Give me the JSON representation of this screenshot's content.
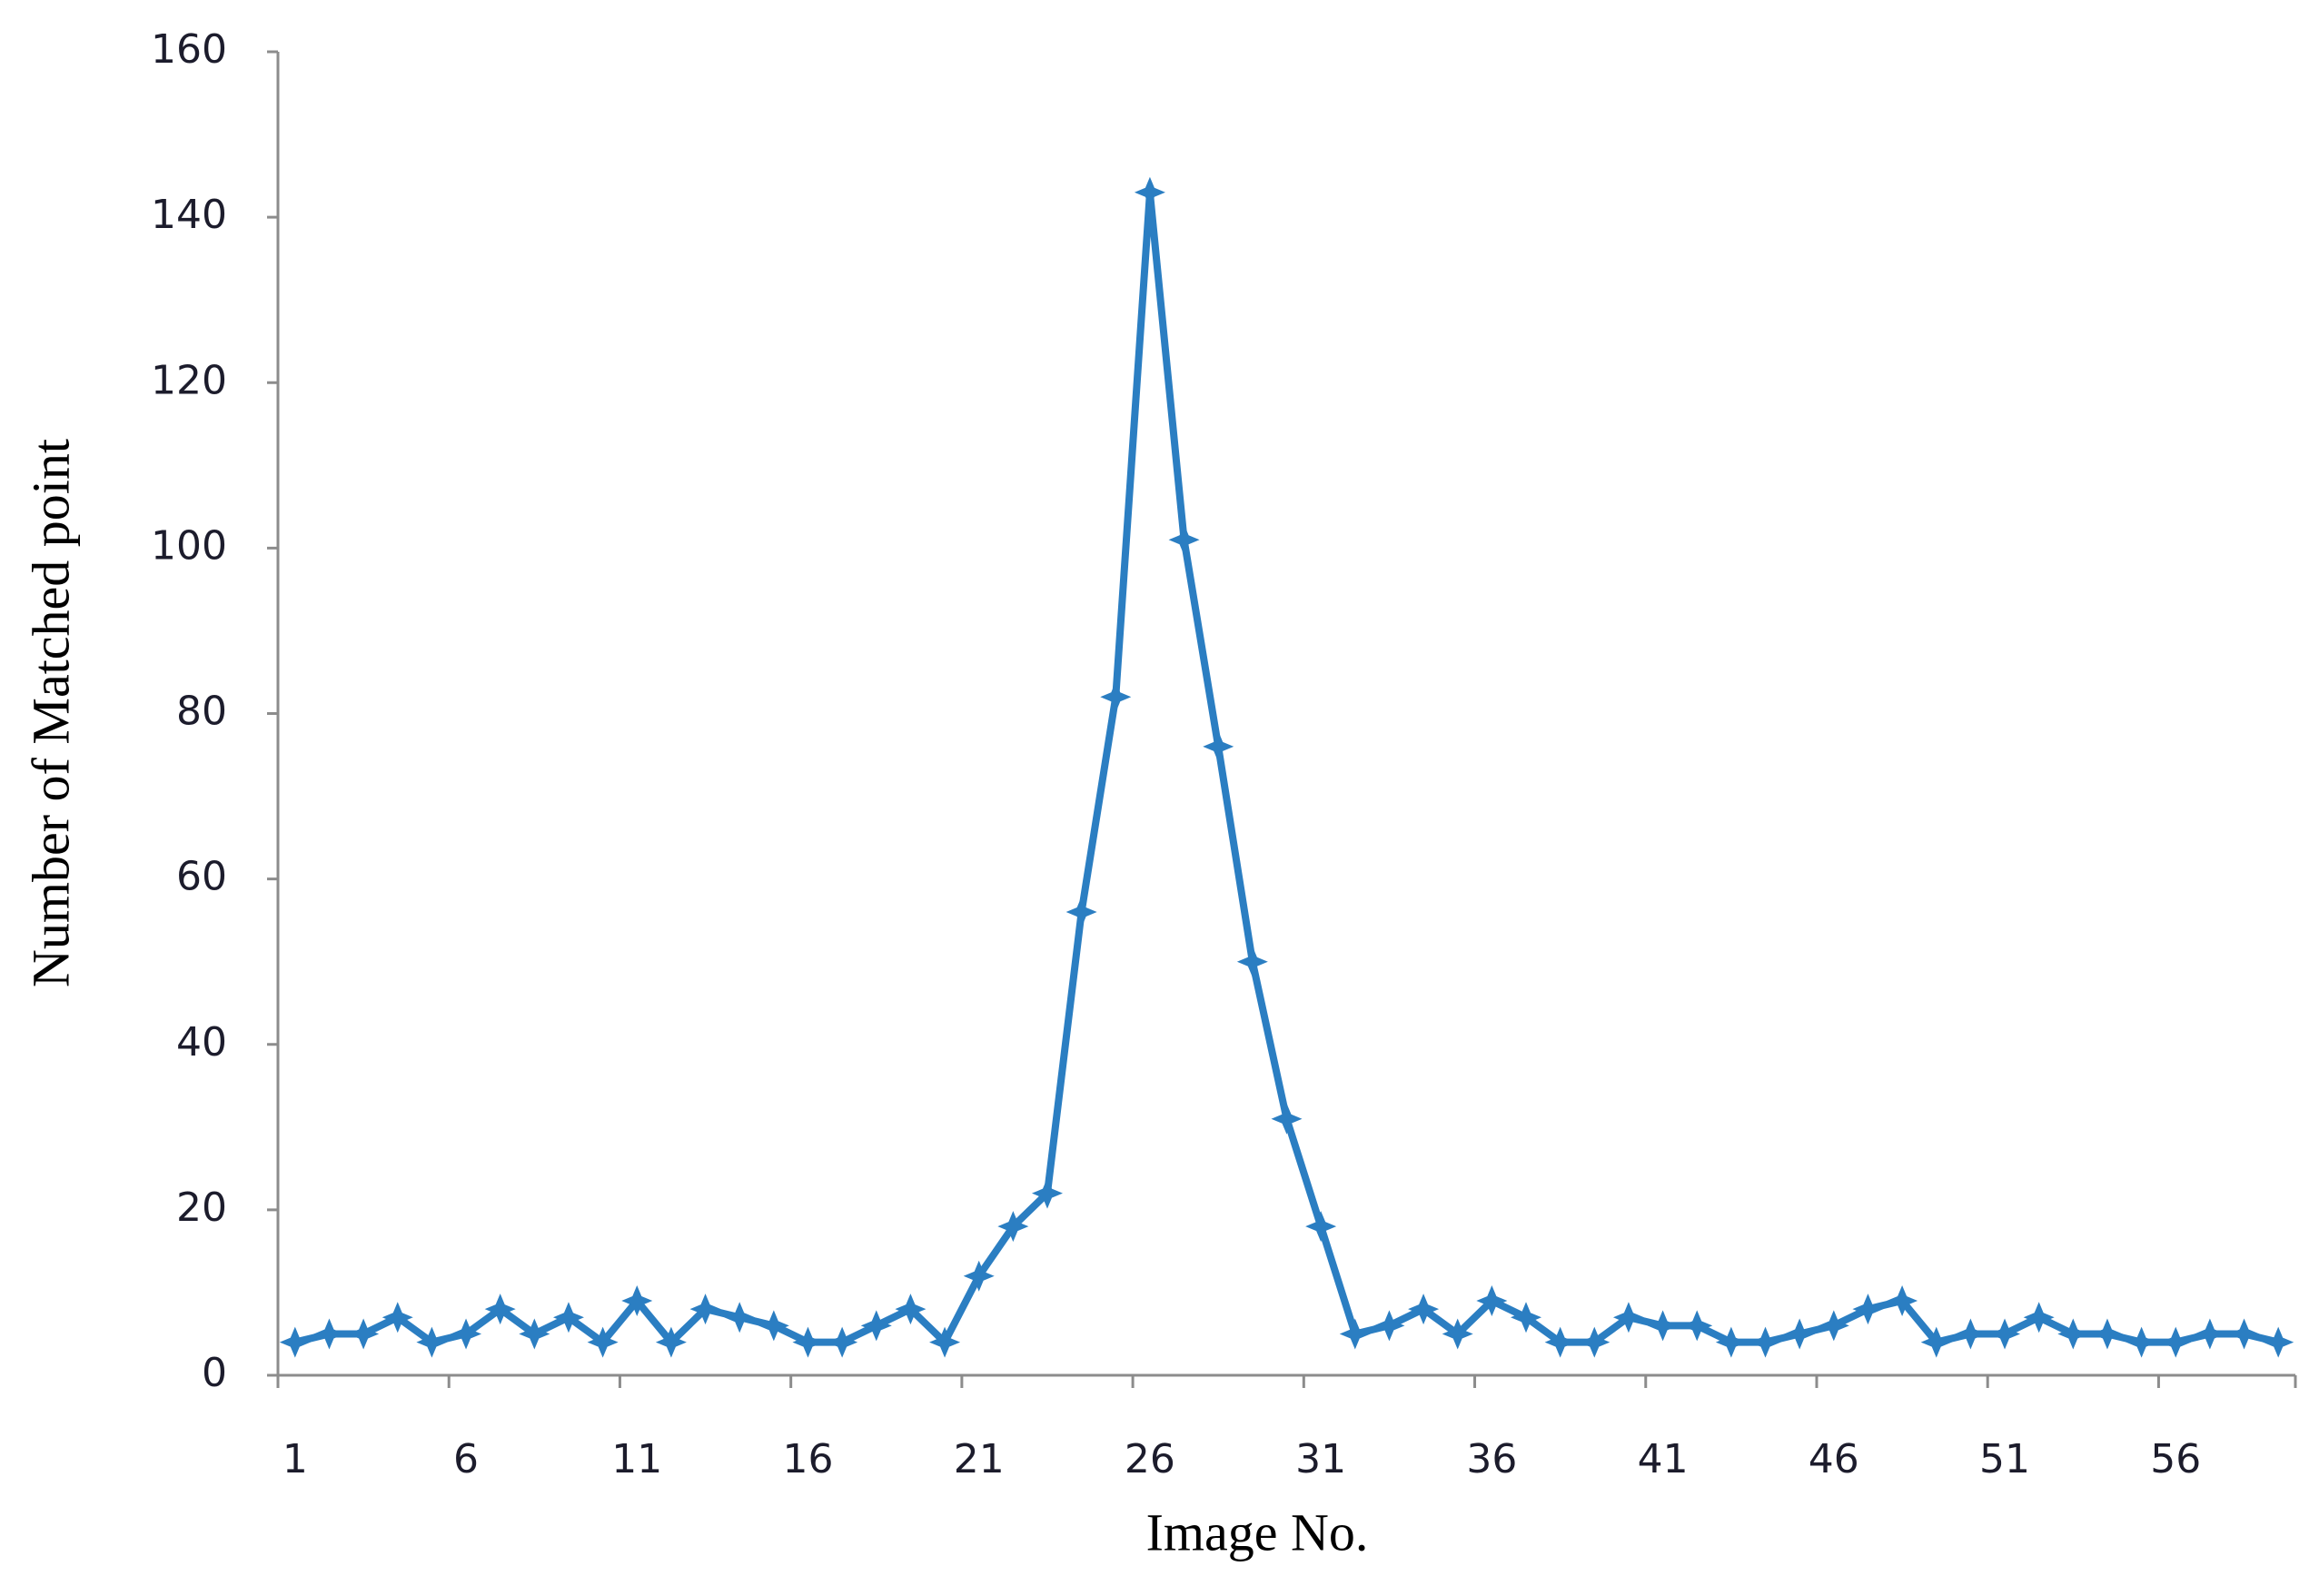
{
  "chart_data": {
    "type": "line",
    "x_label": "Image No.",
    "y_label": "Number of Matched point",
    "categories": [
      "1",
      null,
      null,
      null,
      null,
      "6",
      null,
      null,
      null,
      null,
      "11",
      null,
      null,
      null,
      null,
      "16",
      null,
      null,
      null,
      null,
      "21",
      null,
      null,
      null,
      null,
      "26",
      null,
      null,
      null,
      null,
      "31",
      null,
      null,
      null,
      null,
      "36",
      null,
      null,
      null,
      null,
      "41",
      null,
      null,
      null,
      null,
      "46",
      null,
      null,
      null,
      null,
      "51",
      null,
      null,
      null,
      null,
      "56",
      null,
      null,
      null
    ],
    "series": [
      {
        "color": "#2b7ec2",
        "values": [
          4,
          5,
          5,
          7,
          4,
          5,
          8,
          5,
          7,
          4,
          9,
          4,
          8,
          7,
          6,
          4,
          4,
          6,
          8,
          4,
          12,
          18,
          22,
          56,
          82,
          143,
          101,
          76,
          50,
          31,
          18,
          5,
          6,
          8,
          5,
          9,
          7,
          4,
          4,
          7,
          6,
          6,
          4,
          4,
          5,
          6,
          8,
          9,
          4,
          5,
          5,
          7,
          5,
          5,
          4,
          4,
          5,
          5,
          4
        ]
      }
    ],
    "ylim": [
      0,
      160
    ],
    "yticks": [
      0,
      20,
      40,
      60,
      80,
      100,
      120,
      140,
      160
    ],
    "grid": false
  }
}
